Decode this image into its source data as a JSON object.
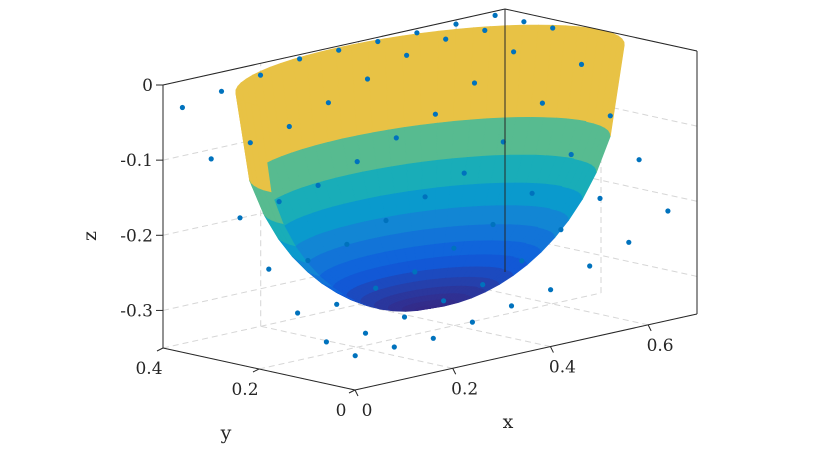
{
  "chart_data": {
    "type": "surface",
    "xlabel": "x",
    "ylabel": "y",
    "zlabel": "z",
    "xlim": [
      0,
      0.7
    ],
    "ylim": [
      0,
      0.4
    ],
    "zlim": [
      -0.35,
      0
    ],
    "xticks": [
      0,
      0.2,
      0.4,
      0.6
    ],
    "xtick_labels": [
      "0",
      "0.2",
      "0.4",
      "0.6"
    ],
    "yticks": [
      0,
      0.2,
      0.4
    ],
    "ytick_labels": [
      "0",
      "0.2",
      "0.4"
    ],
    "zticks": [
      -0.3,
      -0.2,
      -0.1,
      0
    ],
    "ztick_labels": [
      "-0.3",
      "-0.2",
      "-0.1",
      "0"
    ],
    "grid": true,
    "colormap": "parula",
    "colormap_stops": [
      "#352a87",
      "#0f5cdd",
      "#1481d6",
      "#06a4ca",
      "#2eb7a4",
      "#87bf77",
      "#d1bb59",
      "#fec832",
      "#f9fb0e"
    ],
    "surface": {
      "description_free": true,
      "cx": 0.35,
      "cy": 0.2,
      "radius": 0.35,
      "depth": 0.32,
      "opening_deg": 60,
      "opening_center_deg": 90
    },
    "points_color": "#0072bd",
    "points": [
      [
        0.02,
        0.02,
        -0.31
      ],
      [
        0.1,
        0.02,
        -0.31
      ],
      [
        0.18,
        0.02,
        -0.31
      ],
      [
        0.26,
        0.02,
        -0.3
      ],
      [
        0.34,
        0.02,
        -0.29
      ],
      [
        0.42,
        0.02,
        -0.28
      ],
      [
        0.5,
        0.02,
        -0.26
      ],
      [
        0.58,
        0.02,
        -0.24
      ],
      [
        0.66,
        0.02,
        -0.21
      ],
      [
        0.02,
        0.08,
        -0.3
      ],
      [
        0.1,
        0.08,
        -0.3
      ],
      [
        0.18,
        0.08,
        -0.29
      ],
      [
        0.26,
        0.08,
        -0.28
      ],
      [
        0.34,
        0.08,
        -0.27
      ],
      [
        0.42,
        0.08,
        -0.25
      ],
      [
        0.5,
        0.08,
        -0.22
      ],
      [
        0.58,
        0.08,
        -0.19
      ],
      [
        0.66,
        0.08,
        -0.15
      ],
      [
        0.02,
        0.14,
        -0.27
      ],
      [
        0.1,
        0.14,
        -0.27
      ],
      [
        0.18,
        0.14,
        -0.26
      ],
      [
        0.26,
        0.14,
        -0.25
      ],
      [
        0.34,
        0.14,
        -0.23
      ],
      [
        0.42,
        0.14,
        -0.21
      ],
      [
        0.5,
        0.14,
        -0.18
      ],
      [
        0.58,
        0.14,
        -0.14
      ],
      [
        0.66,
        0.14,
        -0.1
      ],
      [
        0.02,
        0.2,
        -0.22
      ],
      [
        0.1,
        0.2,
        -0.22
      ],
      [
        0.18,
        0.2,
        -0.21
      ],
      [
        0.26,
        0.2,
        -0.19
      ],
      [
        0.34,
        0.2,
        -0.17
      ],
      [
        0.42,
        0.2,
        -0.15
      ],
      [
        0.5,
        0.2,
        -0.12
      ],
      [
        0.58,
        0.2,
        -0.08
      ],
      [
        0.66,
        0.2,
        -0.04
      ],
      [
        0.02,
        0.26,
        -0.16
      ],
      [
        0.1,
        0.26,
        -0.15
      ],
      [
        0.18,
        0.26,
        -0.14
      ],
      [
        0.26,
        0.26,
        -0.12
      ],
      [
        0.34,
        0.26,
        -0.1
      ],
      [
        0.42,
        0.26,
        -0.08
      ],
      [
        0.5,
        0.26,
        -0.05
      ],
      [
        0.58,
        0.26,
        -0.02
      ],
      [
        0.66,
        0.26,
        0.0
      ],
      [
        0.02,
        0.32,
        -0.09
      ],
      [
        0.1,
        0.32,
        -0.08
      ],
      [
        0.18,
        0.32,
        -0.07
      ],
      [
        0.26,
        0.32,
        -0.05
      ],
      [
        0.34,
        0.32,
        -0.03
      ],
      [
        0.42,
        0.32,
        -0.01
      ],
      [
        0.5,
        0.32,
        0.0
      ],
      [
        0.58,
        0.32,
        0.0
      ],
      [
        0.66,
        0.32,
        0.0
      ],
      [
        0.02,
        0.38,
        -0.03
      ],
      [
        0.1,
        0.38,
        -0.02
      ],
      [
        0.18,
        0.38,
        -0.01
      ],
      [
        0.26,
        0.38,
        0.0
      ],
      [
        0.34,
        0.38,
        0.0
      ],
      [
        0.42,
        0.38,
        0.0
      ],
      [
        0.5,
        0.38,
        0.0
      ],
      [
        0.58,
        0.38,
        0.0
      ],
      [
        0.66,
        0.38,
        0.0
      ]
    ]
  }
}
